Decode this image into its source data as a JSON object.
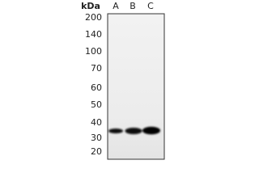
{
  "unit_label": "kDa",
  "lanes": [
    "A",
    "B",
    "C"
  ],
  "markers": [
    "200",
    "140",
    "100",
    "70",
    "60",
    "50",
    "40",
    "30",
    "20"
  ]
}
